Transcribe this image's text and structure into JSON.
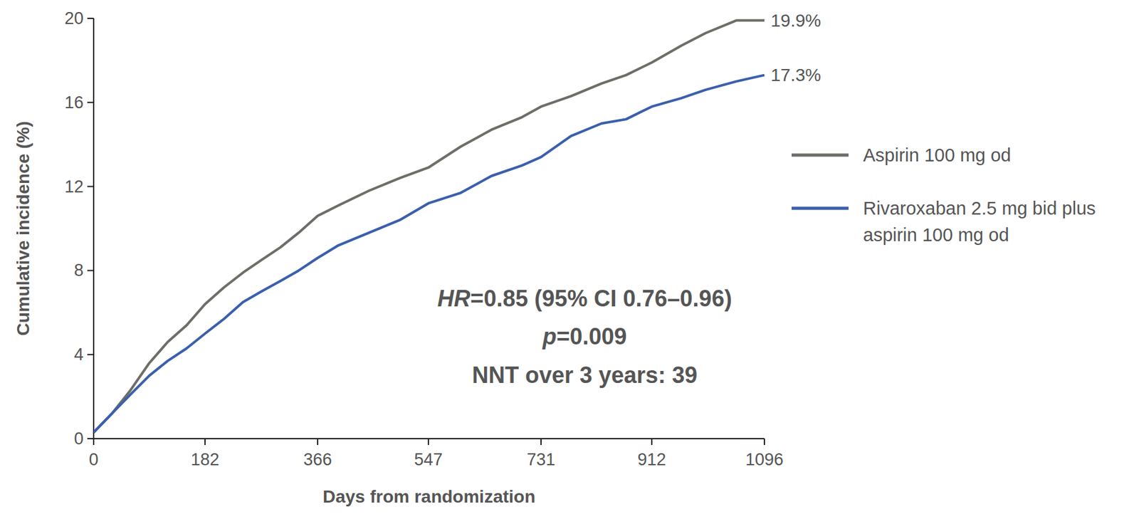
{
  "chart_data": {
    "type": "line",
    "x_label": "Days from randomization",
    "y_label": "Cumulative incidence (%)",
    "x": [
      0,
      30,
      60,
      91,
      121,
      152,
      182,
      213,
      244,
      274,
      305,
      335,
      366,
      400,
      450,
      500,
      547,
      600,
      650,
      700,
      731,
      780,
      830,
      870,
      912,
      960,
      1000,
      1050,
      1096
    ],
    "xlim": [
      0,
      1096
    ],
    "xticks": [
      0,
      182,
      366,
      547,
      731,
      912,
      1096
    ],
    "ylim": [
      0,
      20
    ],
    "yticks": [
      0,
      4,
      8,
      12,
      16,
      20
    ],
    "grid": false,
    "legend": "right",
    "data_labels": true,
    "annotations": [
      "HR=0.85 (95% CI 0.76–0.96)",
      "p=0.009",
      "NNT over 3 years: 39"
    ],
    "series": [
      {
        "name": "Aspirin 100 mg od",
        "color": "#6e6e68",
        "values": [
          0.3,
          1.2,
          2.3,
          3.6,
          4.6,
          5.4,
          6.4,
          7.2,
          7.9,
          8.5,
          9.1,
          9.8,
          10.6,
          11.1,
          11.8,
          12.4,
          12.9,
          13.9,
          14.7,
          15.3,
          15.8,
          16.3,
          16.9,
          17.3,
          17.9,
          18.7,
          19.3,
          19.9,
          19.9
        ],
        "value_labels": [
          null,
          null,
          null,
          null,
          null,
          null,
          null,
          null,
          null,
          null,
          null,
          null,
          null,
          null,
          null,
          null,
          null,
          null,
          null,
          null,
          null,
          null,
          null,
          null,
          null,
          null,
          null,
          null,
          "19.9%"
        ]
      },
      {
        "name": "Rivaroxaban 2.5 mg bid plus aspirin 100 mg od",
        "color": "#3a5fad",
        "values": [
          0.3,
          1.2,
          2.1,
          3.0,
          3.7,
          4.3,
          5.0,
          5.7,
          6.5,
          7.0,
          7.5,
          8.0,
          8.6,
          9.2,
          9.8,
          10.4,
          11.2,
          11.7,
          12.5,
          13.0,
          13.4,
          14.4,
          15.0,
          15.2,
          15.8,
          16.2,
          16.6,
          17.0,
          17.3
        ],
        "value_labels": [
          null,
          null,
          null,
          null,
          null,
          null,
          null,
          null,
          null,
          null,
          null,
          null,
          null,
          null,
          null,
          null,
          null,
          null,
          null,
          null,
          null,
          null,
          null,
          null,
          null,
          null,
          null,
          null,
          "17.3%"
        ]
      }
    ]
  }
}
